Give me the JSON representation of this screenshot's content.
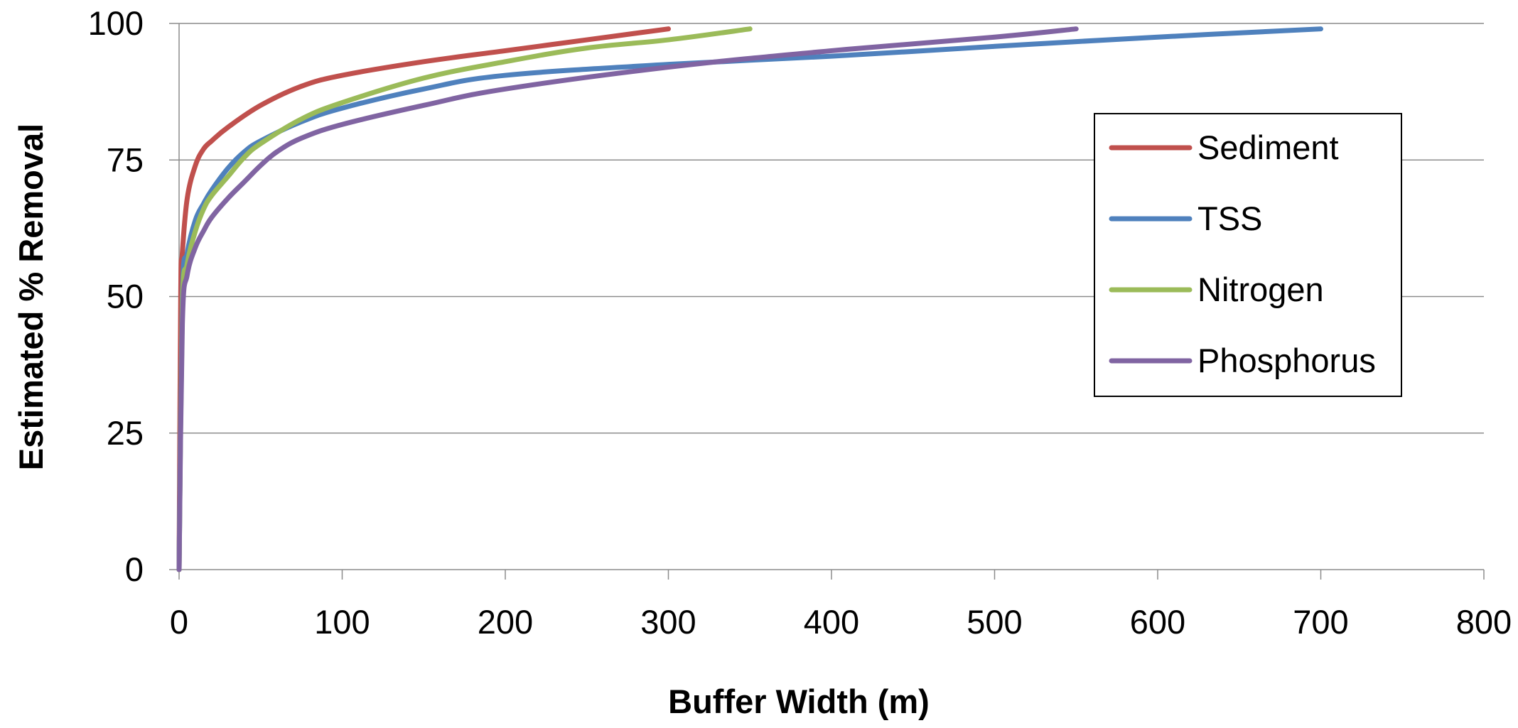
{
  "chart_data": {
    "type": "line",
    "title": "",
    "xlabel": "Buffer Width (m)",
    "ylabel": "Estimated % Removal",
    "xlim": [
      0,
      800
    ],
    "ylim": [
      0,
      100
    ],
    "xticks": [
      0,
      100,
      200,
      300,
      400,
      500,
      600,
      700,
      800
    ],
    "yticks": [
      0,
      25,
      50,
      75,
      100
    ],
    "xtick_labels": [
      "0",
      "100",
      "200",
      "300",
      "400",
      "500",
      "600",
      "700",
      "800"
    ],
    "ytick_labels": [
      "0",
      "25",
      "50",
      "75",
      "100"
    ],
    "grid": "horizontal",
    "legend_position": "right",
    "series": [
      {
        "name": "Sediment",
        "color": "#C0504D",
        "x": [
          0,
          1,
          2,
          5,
          10,
          15,
          20,
          30,
          50,
          75,
          100,
          150,
          200,
          250,
          300
        ],
        "y": [
          0,
          50,
          58,
          68,
          74,
          77,
          78.5,
          81,
          85,
          88.5,
          90.5,
          93,
          95,
          97,
          99
        ]
      },
      {
        "name": "TSS",
        "color": "#4F81BD",
        "x": [
          0,
          2,
          5,
          10,
          15,
          20,
          30,
          40,
          50,
          75,
          100,
          150,
          200,
          300,
          400,
          500,
          600,
          700
        ],
        "y": [
          0,
          50,
          58,
          64,
          67,
          69.5,
          73.5,
          76.5,
          78.5,
          82,
          84.5,
          88,
          90.5,
          92.5,
          94,
          95.8,
          97.5,
          99
        ]
      },
      {
        "name": "Nitrogen",
        "color": "#9BBB59",
        "x": [
          0,
          2,
          5,
          10,
          15,
          20,
          30,
          40,
          50,
          75,
          100,
          150,
          200,
          250,
          300,
          350
        ],
        "y": [
          0,
          48,
          56,
          62,
          66,
          68.5,
          72,
          75.5,
          78,
          82.5,
          85.5,
          90,
          93,
          95.5,
          97,
          99
        ]
      },
      {
        "name": "Phosphorus",
        "color": "#8064A2",
        "x": [
          0,
          2,
          5,
          10,
          15,
          20,
          30,
          40,
          50,
          60,
          75,
          100,
          150,
          200,
          300,
          400,
          500,
          550
        ],
        "y": [
          0,
          45,
          54,
          59,
          62,
          64.5,
          68,
          71,
          74,
          76.5,
          79,
          81.5,
          85,
          88,
          92,
          95,
          97.5,
          99
        ]
      }
    ]
  }
}
